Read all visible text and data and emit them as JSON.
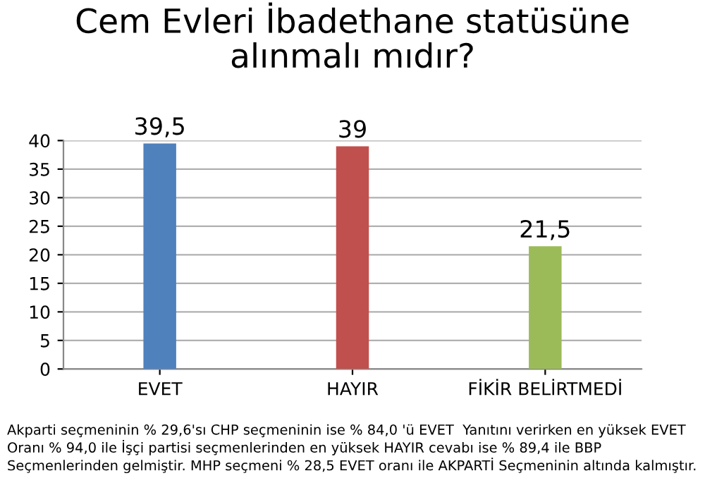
{
  "chart_data": {
    "type": "bar",
    "title": "Cem Evleri İbadethane statüsüne\nalınmalı mıdır?",
    "categories": [
      "EVET",
      "HAYIR",
      "FİKİR BELİRTMEDİ"
    ],
    "values": [
      39.5,
      39,
      21.5
    ],
    "value_labels": [
      "39,5",
      "39",
      "21,5"
    ],
    "colors": [
      "#4f81bd",
      "#c0504d",
      "#9bbb59"
    ],
    "ylim": [
      0,
      40
    ],
    "yticks": [
      0,
      5,
      10,
      15,
      20,
      25,
      30,
      35,
      40
    ],
    "grid": "y",
    "annotations": [
      "Akparti seçmeninin % 29,6'sı CHP seçmeninin ise % 84,0 'ü EVET  Yanıtını verirken en yüksek EVET Oranı % 94,0 ile İşçi partisi seçmenlerinden en yüksek HAYIR cevabı ise % 89,4 ile BBP Seçmenlerinden gelmiştir. MHP seçmeni % 28,5 EVET oranı ile AKPARTİ Seçmeninin altında kalmıştır."
    ]
  }
}
